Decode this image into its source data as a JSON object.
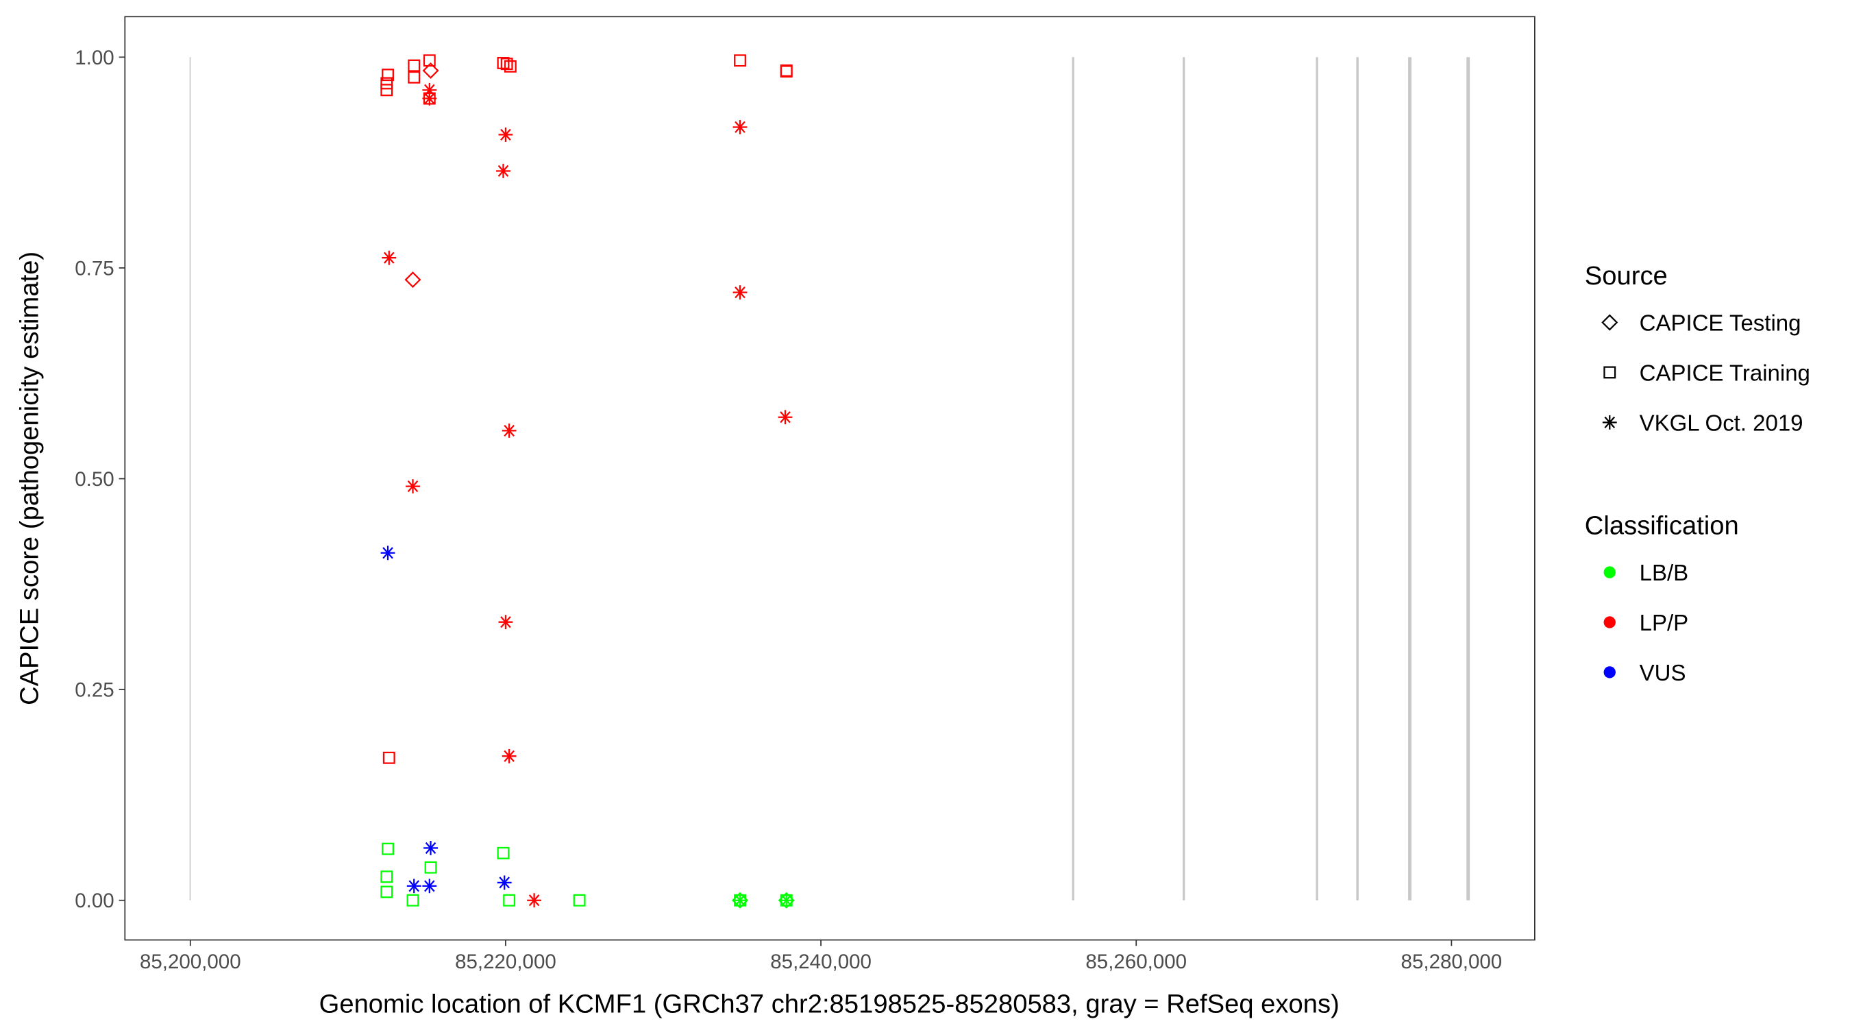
{
  "chart_data": {
    "type": "scatter",
    "xlabel": "Genomic location of KCMF1 (GRCh37 chr2:85198525-85280583, gray = RefSeq exons)",
    "ylabel": "CAPICE score (pathogenicity estimate)",
    "xlim": [
      85195850,
      85285280
    ],
    "ylim": [
      -0.047,
      1.048
    ],
    "xticks": [
      85200000,
      85220000,
      85240000,
      85260000,
      85280000
    ],
    "xtick_labels": [
      "85,200,000",
      "85,220,000",
      "85,240,000",
      "85,260,000",
      "85,280,000"
    ],
    "yticks": [
      0,
      0.25,
      0.5,
      0.75,
      1
    ],
    "ytick_labels": [
      "0.00",
      "0.25",
      "0.50",
      "0.75",
      "1.00"
    ],
    "grid": false,
    "exons": [
      [
        85199950,
        85200000
      ],
      [
        85255930,
        85256070
      ],
      [
        85262950,
        85263090
      ],
      [
        85271400,
        85271540
      ],
      [
        85273960,
        85274110
      ],
      [
        85277250,
        85277460
      ],
      [
        85280950,
        85281160
      ]
    ],
    "exon_color": "#c8c8c8",
    "legend": {
      "placement": "right",
      "source_title": "Source",
      "sources": [
        {
          "key": "testing",
          "label": "CAPICE Testing",
          "shape": "diamond"
        },
        {
          "key": "training",
          "label": "CAPICE Training",
          "shape": "square"
        },
        {
          "key": "vkgl",
          "label": "VKGL Oct. 2019",
          "shape": "asterisk"
        }
      ],
      "class_title": "Classification",
      "classes": [
        {
          "key": "LB/B",
          "label": "LB/B",
          "color": "#00ff00"
        },
        {
          "key": "LP/P",
          "label": "LP/P",
          "color": "#ff0000"
        },
        {
          "key": "VUS",
          "label": "VUS",
          "color": "#0000ff"
        }
      ]
    },
    "points": [
      [
        85212528,
        0.979,
        "training",
        "LP/P"
      ],
      [
        85212453,
        0.969,
        "training",
        "LP/P"
      ],
      [
        85212453,
        0.961,
        "training",
        "LP/P"
      ],
      [
        85214189,
        0.99,
        "training",
        "LP/P"
      ],
      [
        85214189,
        0.976,
        "training",
        "LP/P"
      ],
      [
        85215170,
        0.996,
        "training",
        "LP/P"
      ],
      [
        85215170,
        0.951,
        "training",
        "LP/P"
      ],
      [
        85219849,
        0.993,
        "training",
        "LP/P"
      ],
      [
        85220075,
        0.992,
        "training",
        "LP/P"
      ],
      [
        85220302,
        0.989,
        "training",
        "LP/P"
      ],
      [
        85234868,
        0.996,
        "training",
        "LP/P"
      ],
      [
        85237811,
        0.984,
        "training",
        "LP/P"
      ],
      [
        85237811,
        0.983,
        "training",
        "LP/P"
      ],
      [
        85212604,
        0.169,
        "training",
        "LP/P"
      ],
      [
        85215245,
        0.984,
        "testing",
        "LP/P"
      ],
      [
        85214113,
        0.736,
        "testing",
        "LP/P"
      ],
      [
        85215170,
        0.961,
        "vkgl",
        "LP/P"
      ],
      [
        85215170,
        0.951,
        "vkgl",
        "LP/P"
      ],
      [
        85220000,
        0.908,
        "vkgl",
        "LP/P"
      ],
      [
        85219849,
        0.865,
        "vkgl",
        "LP/P"
      ],
      [
        85212604,
        0.762,
        "vkgl",
        "LP/P"
      ],
      [
        85234868,
        0.917,
        "vkgl",
        "LP/P"
      ],
      [
        85234868,
        0.721,
        "vkgl",
        "LP/P"
      ],
      [
        85237736,
        0.573,
        "vkgl",
        "LP/P"
      ],
      [
        85220226,
        0.557,
        "vkgl",
        "LP/P"
      ],
      [
        85214113,
        0.491,
        "vkgl",
        "LP/P"
      ],
      [
        85220000,
        0.33,
        "vkgl",
        "LP/P"
      ],
      [
        85220226,
        0.171,
        "vkgl",
        "LP/P"
      ],
      [
        85221811,
        0.0,
        "vkgl",
        "LP/P"
      ],
      [
        85212528,
        0.412,
        "vkgl",
        "VUS"
      ],
      [
        85215245,
        0.062,
        "vkgl",
        "VUS"
      ],
      [
        85214189,
        0.017,
        "vkgl",
        "VUS"
      ],
      [
        85215170,
        0.017,
        "vkgl",
        "VUS"
      ],
      [
        85219924,
        0.021,
        "vkgl",
        "VUS"
      ],
      [
        85212528,
        0.061,
        "training",
        "LB/B"
      ],
      [
        85212453,
        0.028,
        "training",
        "LB/B"
      ],
      [
        85212453,
        0.01,
        "training",
        "LB/B"
      ],
      [
        85214113,
        0.0,
        "training",
        "LB/B"
      ],
      [
        85215245,
        0.039,
        "training",
        "LB/B"
      ],
      [
        85219849,
        0.056,
        "training",
        "LB/B"
      ],
      [
        85220226,
        0.0,
        "training",
        "LB/B"
      ],
      [
        85224679,
        0.0,
        "training",
        "LB/B"
      ],
      [
        85234868,
        0.0,
        "training",
        "LB/B"
      ],
      [
        85237811,
        0.0,
        "training",
        "LB/B"
      ],
      [
        85234868,
        0.0,
        "vkgl",
        "LB/B"
      ],
      [
        85237811,
        0.0,
        "vkgl",
        "LB/B"
      ],
      [
        85234868,
        0.0,
        "testing",
        "LB/B"
      ],
      [
        85237811,
        0.0,
        "testing",
        "LB/B"
      ]
    ]
  }
}
